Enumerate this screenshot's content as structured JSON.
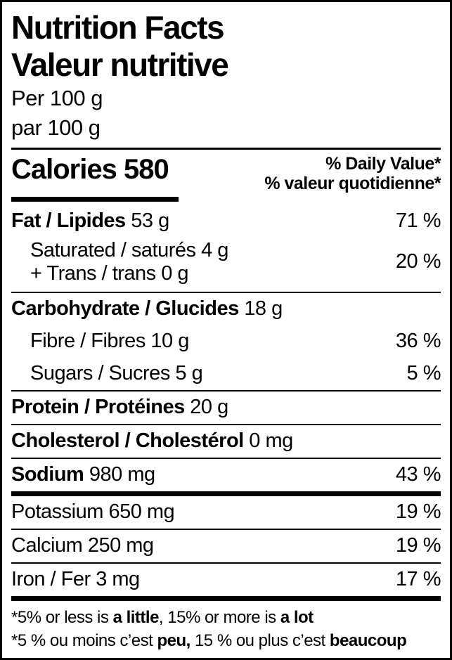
{
  "colors": {
    "text": "#000000",
    "background": "#ffffff",
    "rule": "#000000"
  },
  "header": {
    "title_en": "Nutrition Facts",
    "title_fr": "Valeur nutritive",
    "serving_en": "Per 100 g",
    "serving_fr": "par 100 g"
  },
  "calories": {
    "label": "Calories",
    "value": "580"
  },
  "daily_value_header": {
    "line1": "% Daily Value*",
    "line2": "% valeur quotidienne*"
  },
  "nutrients": [
    {
      "label": "Fat / Lipides",
      "amount": "53 g",
      "dv": "71 %"
    },
    {
      "line1": "Saturated / saturés 4 g",
      "line2": "+ Trans / trans 0 g",
      "dv": "20 %"
    },
    {
      "label": "Carbohydrate / Glucides",
      "amount": "18 g",
      "dv": ""
    },
    {
      "label": "Fibre / Fibres",
      "amount": "10 g",
      "dv": "36 %"
    },
    {
      "label": "Sugars / Sucres",
      "amount": "5 g",
      "dv": "5 %"
    },
    {
      "label": "Protein / Protéines",
      "amount": "20 g",
      "dv": ""
    },
    {
      "label": "Cholesterol / Cholestérol",
      "amount": "0 mg",
      "dv": ""
    },
    {
      "label": "Sodium",
      "amount": "980 mg",
      "dv": "43 %"
    },
    {
      "label": "Potassium",
      "amount": "650 mg",
      "dv": "19 %"
    },
    {
      "label": "Calcium",
      "amount": "250 mg",
      "dv": "19 %"
    },
    {
      "label": "Iron / Fer",
      "amount": "3 mg",
      "dv": "17 %"
    }
  ],
  "footnote_en": {
    "pre": "*5% or less is ",
    "bold1": "a little",
    "mid": ", 15% or more is ",
    "bold2": "a lot"
  },
  "footnote_fr": {
    "pre": "*5 % ou moins c’est ",
    "bold1": "peu,",
    "mid": " 15 % ou plus c’est ",
    "bold2": "beaucoup"
  }
}
